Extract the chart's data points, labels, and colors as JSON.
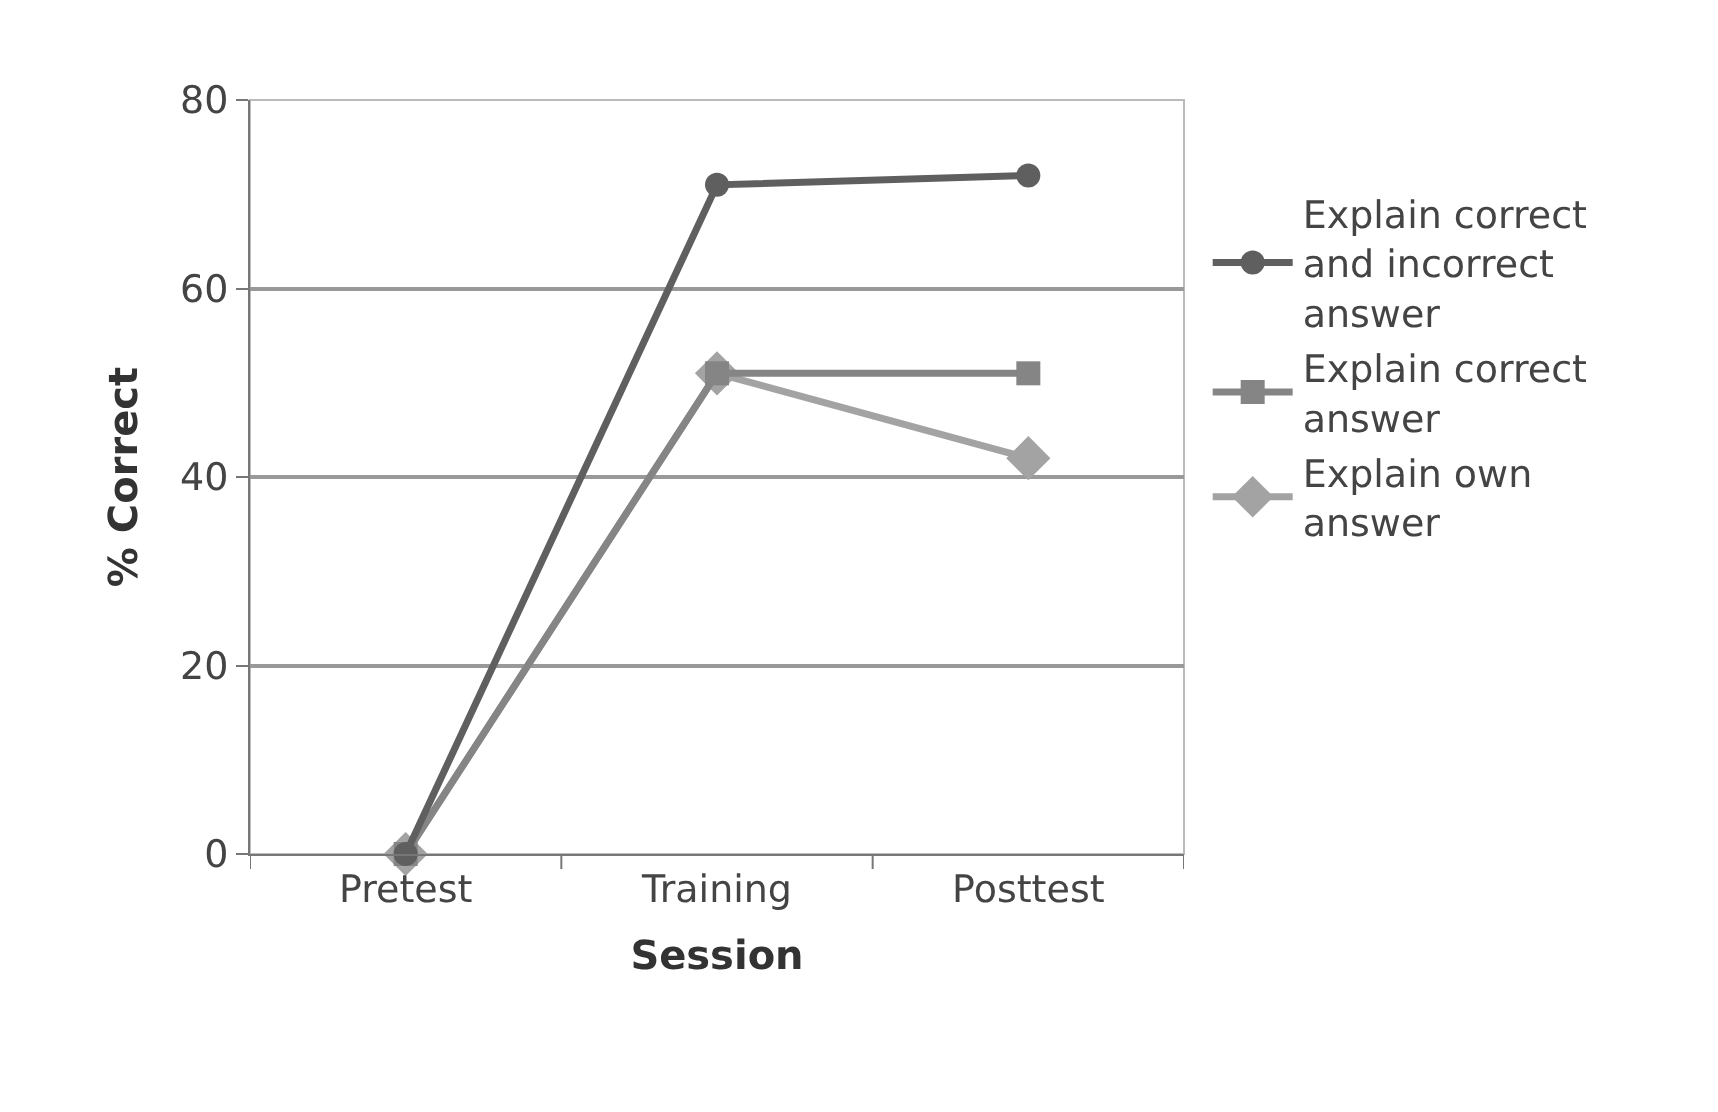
{
  "chart_data": {
    "type": "line",
    "xlabel": "Session",
    "ylabel": "% Correct",
    "categories": [
      "Pretest",
      "Training",
      "Posttest"
    ],
    "series": [
      {
        "name": "Explain correct and incorrect answer",
        "color": "#5f5f5f",
        "marker": "circle",
        "values": [
          0,
          71,
          72
        ]
      },
      {
        "name": "Explain correct answer",
        "color": "#858585",
        "marker": "square",
        "values": [
          0,
          51,
          51
        ]
      },
      {
        "name": "Explain own answer",
        "color": "#a3a3a3",
        "marker": "diamond",
        "values": [
          0,
          51,
          42
        ]
      }
    ],
    "ylim": [
      0,
      80
    ],
    "yticks": [
      0,
      20,
      40,
      60,
      80
    ],
    "grid": "y",
    "legend": "right",
    "line_style": "solid"
  }
}
